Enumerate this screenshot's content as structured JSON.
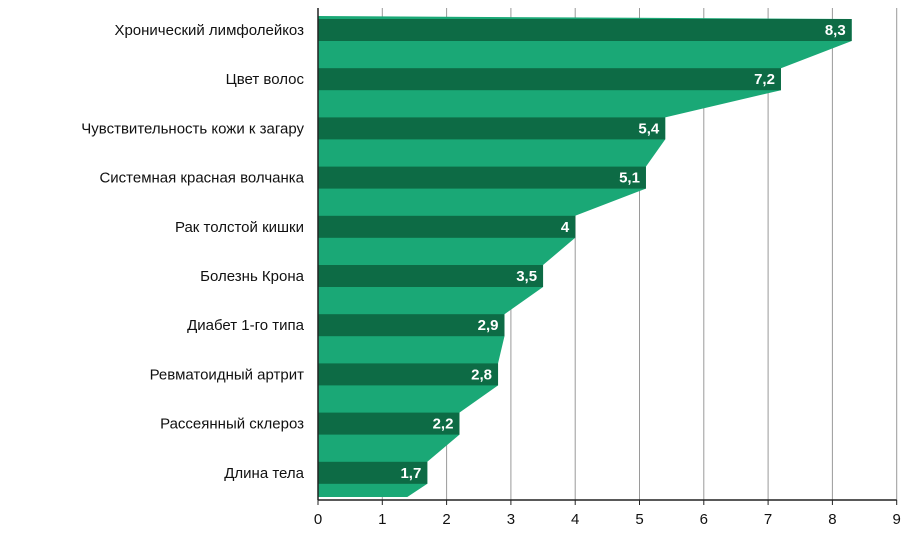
{
  "chart_data": {
    "type": "bar",
    "orientation": "horizontal",
    "categories": [
      "Хронический лимфолейкоз",
      "Цвет волос",
      "Чувствительность кожи к загару",
      "Системная красная волчанка",
      "Рак толстой кишки",
      "Болезнь Крона",
      "Диабет 1-го типа",
      "Ревматоидный артрит",
      "Рассеянный склероз",
      "Длина тела"
    ],
    "values": [
      8.3,
      7.2,
      5.4,
      5.1,
      4,
      3.5,
      2.9,
      2.8,
      2.2,
      1.7
    ],
    "value_labels": [
      "8,3",
      "7,2",
      "5,4",
      "5,1",
      "4",
      "3,5",
      "2,9",
      "2,8",
      "2,2",
      "1,7"
    ],
    "x_ticks": [
      "0",
      "1",
      "2",
      "3",
      "4",
      "5",
      "6",
      "7",
      "8",
      "9"
    ],
    "xlim": [
      0,
      9
    ],
    "grid": true,
    "colors": {
      "bar": "#0d6b45",
      "area": "#1aa876",
      "grid": "#9a9a9a"
    }
  }
}
